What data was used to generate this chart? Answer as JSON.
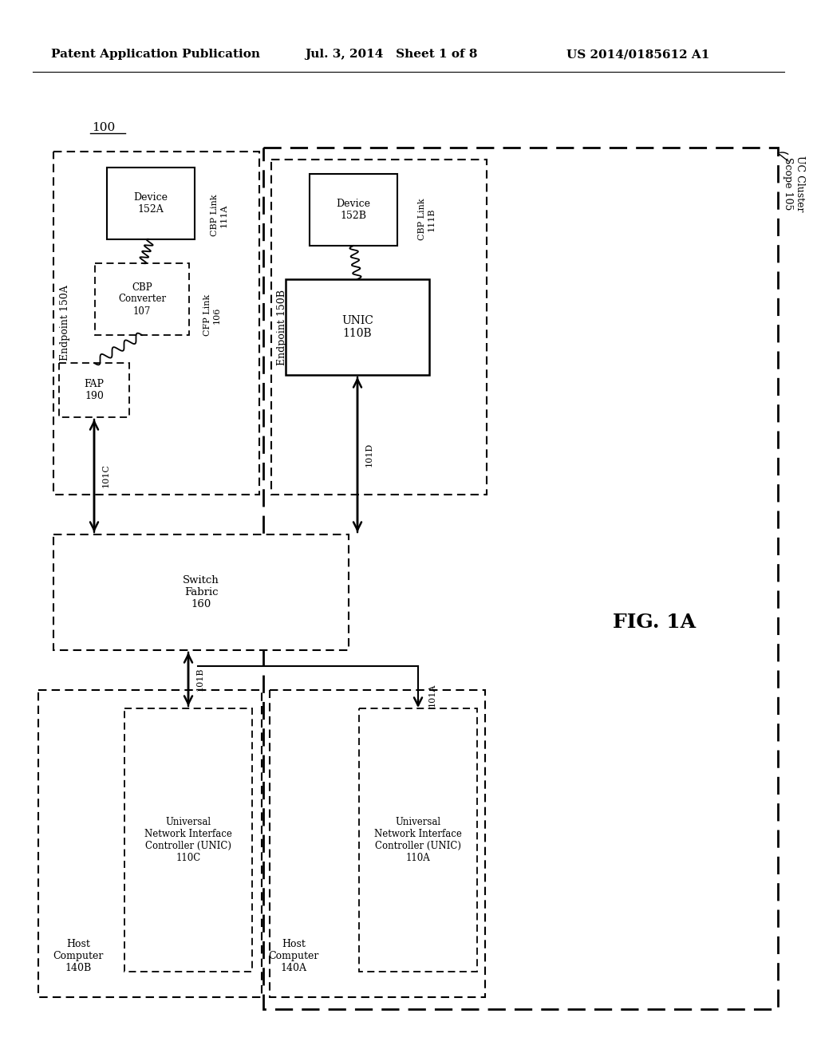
{
  "title_left": "Patent Application Publication",
  "title_mid": "Jul. 3, 2014   Sheet 1 of 8",
  "title_right": "US 2014/0185612 A1",
  "fig_label": "FIG. 1A",
  "diagram_number": "100",
  "background": "#ffffff"
}
